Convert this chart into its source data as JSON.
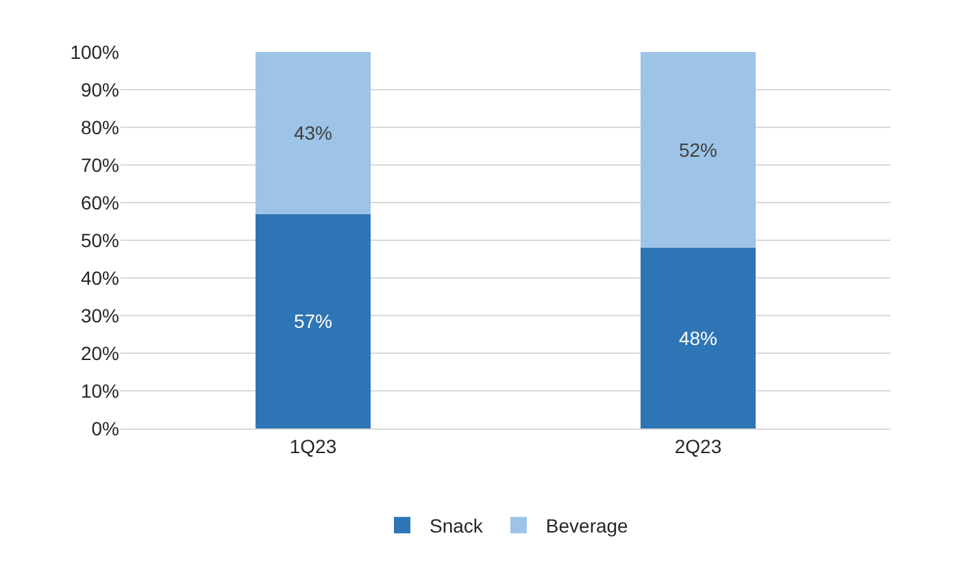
{
  "chart_data": {
    "type": "bar",
    "stacked": true,
    "categories": [
      "1Q23",
      "2Q23"
    ],
    "series": [
      {
        "name": "Snack",
        "color": "#2e75b6",
        "values": [
          57,
          48
        ],
        "value_labels": [
          "57%",
          "48%"
        ]
      },
      {
        "name": "Beverage",
        "color": "#9dc3e6",
        "values": [
          43,
          52
        ],
        "value_labels": [
          "43%",
          "52%"
        ]
      }
    ],
    "ylim": [
      0,
      100
    ],
    "yticks": [
      {
        "value": 0,
        "label": "0%"
      },
      {
        "value": 10,
        "label": "10%"
      },
      {
        "value": 20,
        "label": "20%"
      },
      {
        "value": 30,
        "label": "30%"
      },
      {
        "value": 40,
        "label": "40%"
      },
      {
        "value": 50,
        "label": "50%"
      },
      {
        "value": 60,
        "label": "60%"
      },
      {
        "value": 70,
        "label": "70%"
      },
      {
        "value": 80,
        "label": "80%"
      },
      {
        "value": 90,
        "label": "90%"
      },
      {
        "value": 100,
        "label": "100%"
      }
    ],
    "grid": "y",
    "legend": "bottom"
  }
}
